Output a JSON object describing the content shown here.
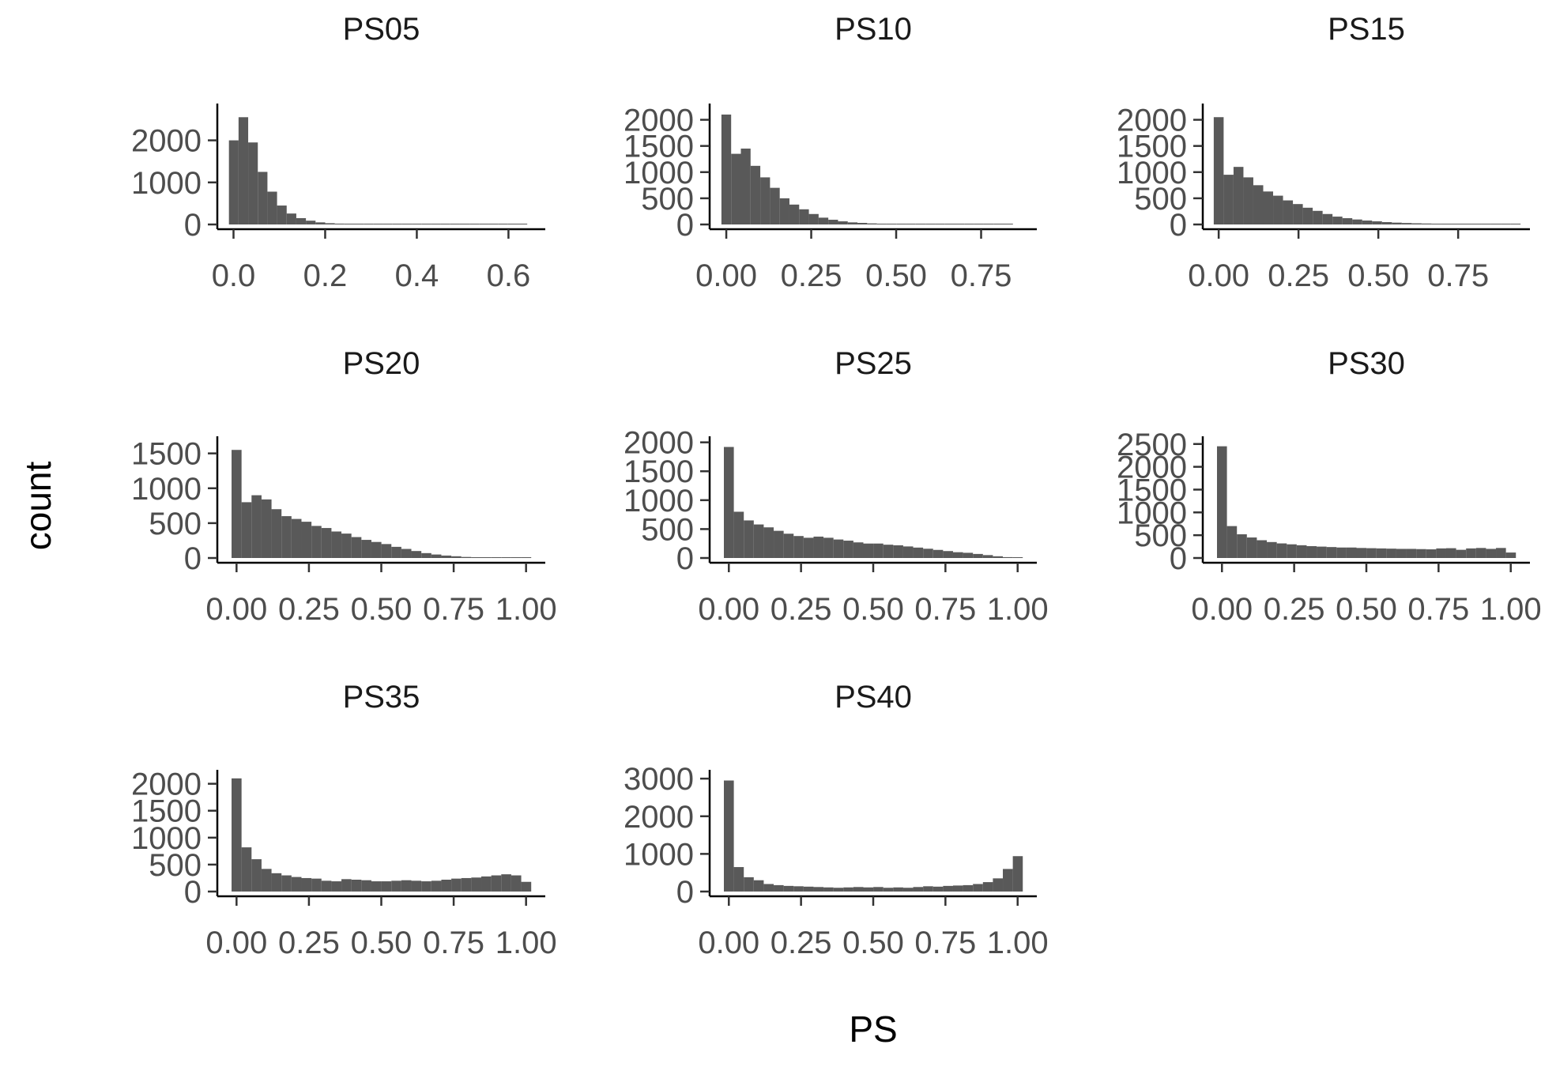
{
  "chart_data": {
    "type": "bar",
    "xlabel": "PS",
    "ylabel": "count",
    "bar_color": "#595959",
    "panels": [
      {
        "title": "PS05",
        "xlim": [
          -0.025,
          0.67
        ],
        "ylim": [
          0,
          2800
        ],
        "x_ticks": [
          0,
          0.2,
          0.4,
          0.6
        ],
        "x_tick_labels": [
          "0.0",
          "0.2",
          "0.4",
          "0.6"
        ],
        "y_ticks": [
          0,
          1000,
          2000
        ],
        "y_tick_labels": [
          "0",
          "1000",
          "2000"
        ],
        "bin_width": 0.021,
        "bin_start": -0.01,
        "values": [
          2000,
          2550,
          1950,
          1250,
          780,
          450,
          260,
          150,
          90,
          50,
          30,
          20,
          15,
          10,
          8,
          6,
          5,
          4,
          3,
          3,
          2,
          2,
          2,
          2,
          1,
          1,
          1,
          1,
          1,
          1,
          1
        ]
      },
      {
        "title": "PS10",
        "xlim": [
          -0.035,
          0.9
        ],
        "ylim": [
          0,
          2250
        ],
        "x_ticks": [
          0,
          0.25,
          0.5,
          0.75
        ],
        "x_tick_labels": [
          "0.00",
          "0.25",
          "0.50",
          "0.75"
        ],
        "y_ticks": [
          0,
          500,
          1000,
          1500,
          2000
        ],
        "y_tick_labels": [
          "0",
          "500",
          "1000",
          "1500",
          "2000"
        ],
        "bin_width": 0.0286,
        "bin_start": -0.0143,
        "values": [
          2100,
          1350,
          1450,
          1120,
          900,
          700,
          500,
          380,
          290,
          200,
          130,
          90,
          60,
          40,
          30,
          20,
          15,
          10,
          8,
          6,
          5,
          4,
          3,
          3,
          2,
          2,
          2,
          1,
          1,
          1
        ]
      },
      {
        "title": "PS15",
        "xlim": [
          -0.035,
          0.96
        ],
        "ylim": [
          0,
          2250
        ],
        "x_ticks": [
          0,
          0.25,
          0.5,
          0.75
        ],
        "x_tick_labels": [
          "0.00",
          "0.25",
          "0.50",
          "0.75"
        ],
        "y_ticks": [
          0,
          500,
          1000,
          1500,
          2000
        ],
        "y_tick_labels": [
          "0",
          "500",
          "1000",
          "1500",
          "2000"
        ],
        "bin_width": 0.031,
        "bin_start": -0.0155,
        "values": [
          2050,
          950,
          1100,
          900,
          750,
          630,
          550,
          460,
          390,
          320,
          260,
          200,
          150,
          120,
          95,
          75,
          60,
          45,
          35,
          28,
          22,
          18,
          14,
          10,
          8,
          6,
          5,
          4,
          3,
          2,
          2
        ]
      },
      {
        "title": "PS20",
        "xlim": [
          -0.05,
          1.05
        ],
        "ylim": [
          0,
          1700
        ],
        "x_ticks": [
          0,
          0.25,
          0.5,
          0.75,
          1
        ],
        "x_tick_labels": [
          "0.00",
          "0.25",
          "0.50",
          "0.75",
          "1.00"
        ],
        "y_ticks": [
          0,
          500,
          1000,
          1500
        ],
        "y_tick_labels": [
          "0",
          "500",
          "1000",
          "1500"
        ],
        "bin_width": 0.0345,
        "bin_start": -0.0172,
        "values": [
          1550,
          800,
          900,
          840,
          700,
          600,
          560,
          520,
          460,
          430,
          380,
          350,
          300,
          260,
          230,
          200,
          160,
          130,
          100,
          70,
          50,
          35,
          25,
          15,
          10,
          6,
          4,
          3,
          2,
          1
        ]
      },
      {
        "title": "PS25",
        "xlim": [
          -0.05,
          1.05
        ],
        "ylim": [
          0,
          2050
        ],
        "x_ticks": [
          0,
          0.25,
          0.5,
          0.75,
          1
        ],
        "x_tick_labels": [
          "0.00",
          "0.25",
          "0.50",
          "0.75",
          "1.00"
        ],
        "y_ticks": [
          0,
          500,
          1000,
          1500,
          2000
        ],
        "y_tick_labels": [
          "0",
          "500",
          "1000",
          "1500",
          "2000"
        ],
        "bin_width": 0.0345,
        "bin_start": -0.0172,
        "values": [
          1920,
          800,
          650,
          580,
          530,
          470,
          420,
          380,
          350,
          370,
          350,
          320,
          300,
          270,
          250,
          250,
          230,
          220,
          200,
          180,
          160,
          140,
          120,
          100,
          90,
          70,
          50,
          30,
          15,
          5
        ]
      },
      {
        "title": "PS30",
        "xlim": [
          -0.05,
          1.05
        ],
        "ylim": [
          0,
          2600
        ],
        "x_ticks": [
          0,
          0.25,
          0.5,
          0.75,
          1
        ],
        "x_tick_labels": [
          "0.00",
          "0.25",
          "0.50",
          "0.75",
          "1.00"
        ],
        "y_ticks": [
          0,
          500,
          1000,
          1500,
          2000,
          2500
        ],
        "y_tick_labels": [
          "0",
          "500",
          "1000",
          "1500",
          "2000",
          "2500"
        ],
        "bin_width": 0.0345,
        "bin_start": -0.0172,
        "values": [
          2450,
          700,
          520,
          450,
          390,
          350,
          320,
          300,
          280,
          260,
          250,
          240,
          230,
          230,
          220,
          215,
          210,
          205,
          200,
          200,
          195,
          190,
          210,
          215,
          180,
          210,
          220,
          200,
          220,
          120
        ]
      },
      {
        "title": "PS35",
        "xlim": [
          -0.05,
          1.05
        ],
        "ylim": [
          0,
          2200
        ],
        "x_ticks": [
          0,
          0.25,
          0.5,
          0.75,
          1
        ],
        "x_tick_labels": [
          "0.00",
          "0.25",
          "0.50",
          "0.75",
          "1.00"
        ],
        "y_ticks": [
          0,
          500,
          1000,
          1500,
          2000
        ],
        "y_tick_labels": [
          "0",
          "500",
          "1000",
          "1500",
          "2000"
        ],
        "bin_width": 0.0345,
        "bin_start": -0.0172,
        "values": [
          2100,
          820,
          600,
          420,
          340,
          300,
          270,
          250,
          240,
          200,
          190,
          230,
          220,
          210,
          190,
          190,
          200,
          210,
          200,
          190,
          200,
          220,
          240,
          250,
          260,
          280,
          300,
          320,
          300,
          180
        ]
      },
      {
        "title": "PS40",
        "xlim": [
          -0.05,
          1.05
        ],
        "ylim": [
          0,
          3150
        ],
        "x_ticks": [
          0,
          0.25,
          0.5,
          0.75,
          1
        ],
        "x_tick_labels": [
          "0.00",
          "0.25",
          "0.50",
          "0.75",
          "1.00"
        ],
        "y_ticks": [
          0,
          1000,
          2000,
          3000
        ],
        "y_tick_labels": [
          "0",
          "1000",
          "2000",
          "3000"
        ],
        "bin_width": 0.0345,
        "bin_start": -0.0172,
        "values": [
          2950,
          650,
          380,
          300,
          200,
          170,
          150,
          140,
          130,
          120,
          110,
          100,
          110,
          120,
          110,
          120,
          100,
          110,
          100,
          120,
          140,
          130,
          150,
          160,
          170,
          200,
          250,
          350,
          600,
          940
        ]
      }
    ]
  }
}
